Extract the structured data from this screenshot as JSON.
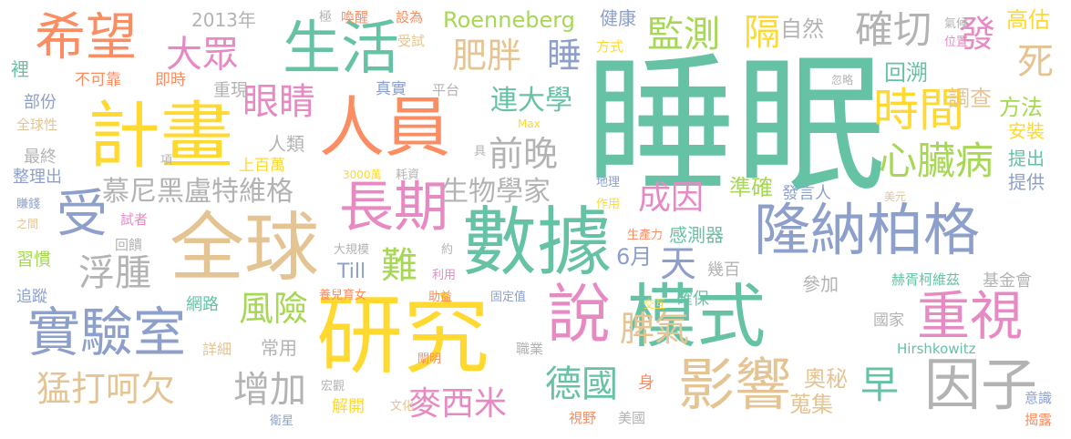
{
  "palette": {
    "green": "#66c2a5",
    "orange": "#fc8d62",
    "blue": "#8da0cb",
    "pink": "#e78ac3",
    "lime": "#a6d854",
    "yellow": "#ffd92f",
    "tan": "#e5c494",
    "gray": "#b3b3b3"
  },
  "words": [
    {
      "text": "睡眠",
      "color": "#66c2a5",
      "weight": 1.0
    },
    {
      "text": "數據",
      "color": "#66c2a5",
      "weight": 0.55
    },
    {
      "text": "研究",
      "color": "#ffd92f",
      "weight": 0.6
    },
    {
      "text": "全球",
      "color": "#e5c494",
      "weight": 0.55
    },
    {
      "text": "計畫",
      "color": "#ffd92f",
      "weight": 0.5
    },
    {
      "text": "人員",
      "color": "#fc8d62",
      "weight": 0.5
    },
    {
      "text": "模式",
      "color": "#66c2a5",
      "weight": 0.5
    },
    {
      "text": "說",
      "color": "#e78ac3",
      "weight": 0.5
    },
    {
      "text": "隆納柏格",
      "color": "#8da0cb",
      "weight": 0.45
    },
    {
      "text": "生活",
      "color": "#66c2a5",
      "weight": 0.4
    },
    {
      "text": "希望",
      "color": "#fc8d62",
      "weight": 0.4
    },
    {
      "text": "實驗室",
      "color": "#8da0cb",
      "weight": 0.38
    },
    {
      "text": "長期",
      "color": "#e78ac3",
      "weight": 0.38
    },
    {
      "text": "重視",
      "color": "#e78ac3",
      "weight": 0.38
    },
    {
      "text": "影響",
      "color": "#e5c494",
      "weight": 0.38
    },
    {
      "text": "因子",
      "color": "#b3b3b3",
      "weight": 0.38
    },
    {
      "text": "時間",
      "color": "#ffd92f",
      "weight": 0.33
    },
    {
      "text": "受",
      "color": "#8da0cb",
      "weight": 0.35
    },
    {
      "text": "大眾",
      "color": "#e78ac3",
      "weight": 0.28
    },
    {
      "text": "眼睛",
      "color": "#e78ac3",
      "weight": 0.28
    },
    {
      "text": "監測",
      "color": "#a6d854",
      "weight": 0.28
    },
    {
      "text": "隔",
      "color": "#ffd92f",
      "weight": 0.28
    },
    {
      "text": "確切",
      "color": "#b3b3b3",
      "weight": 0.28
    },
    {
      "text": "發",
      "color": "#e78ac3",
      "weight": 0.28
    },
    {
      "text": "死",
      "color": "#e5c494",
      "weight": 0.28
    },
    {
      "text": "肥胖",
      "color": "#e5c494",
      "weight": 0.25
    },
    {
      "text": "睡",
      "color": "#8da0cb",
      "weight": 0.25
    },
    {
      "text": "心臟病",
      "color": "#a6d854",
      "weight": 0.28
    },
    {
      "text": "前晚",
      "color": "#b3b3b3",
      "weight": 0.25
    },
    {
      "text": "連大學",
      "color": "#66c2a5",
      "weight": 0.22
    },
    {
      "text": "慕尼黑盧特維格",
      "color": "#b3b3b3",
      "weight": 0.22
    },
    {
      "text": "生物學家",
      "color": "#b3b3b3",
      "weight": 0.22
    },
    {
      "text": "成因",
      "color": "#e78ac3",
      "weight": 0.25
    },
    {
      "text": "浮腫",
      "color": "#b3b3b3",
      "weight": 0.28
    },
    {
      "text": "難",
      "color": "#a6d854",
      "weight": 0.28
    },
    {
      "text": "Till",
      "color": "#8da0cb",
      "weight": 0.15
    },
    {
      "text": "天",
      "color": "#8da0cb",
      "weight": 0.28
    },
    {
      "text": "6月",
      "color": "#8da0cb",
      "weight": 0.18
    },
    {
      "text": "風險",
      "color": "#a6d854",
      "weight": 0.25
    },
    {
      "text": "猛打呵欠",
      "color": "#e5c494",
      "weight": 0.25
    },
    {
      "text": "增加",
      "color": "#b3b3b3",
      "weight": 0.28
    },
    {
      "text": "德國",
      "color": "#66c2a5",
      "weight": 0.28
    },
    {
      "text": "脾氣",
      "color": "#e5c494",
      "weight": 0.25
    },
    {
      "text": "麥西米",
      "color": "#e78ac3",
      "weight": 0.25
    },
    {
      "text": "早",
      "color": "#66c2a5",
      "weight": 0.28
    },
    {
      "text": "奧秘",
      "color": "#e5c494",
      "weight": 0.18
    },
    {
      "text": "蒐集",
      "color": "#e5c494",
      "weight": 0.18
    },
    {
      "text": "Roenneberg",
      "color": "#a6d854",
      "weight": 0.16
    },
    {
      "text": "健康",
      "color": "#8da0cb",
      "weight": 0.14
    },
    {
      "text": "自然",
      "color": "#b3b3b3",
      "weight": 0.16
    },
    {
      "text": "高估",
      "color": "#ffd92f",
      "weight": 0.16
    },
    {
      "text": "回溯",
      "color": "#66c2a5",
      "weight": 0.16
    },
    {
      "text": "調查",
      "color": "#e5c494",
      "weight": 0.16
    },
    {
      "text": "方法",
      "color": "#a6d854",
      "weight": 0.16
    },
    {
      "text": "安裝",
      "color": "#ffd92f",
      "weight": 0.14
    },
    {
      "text": "提出",
      "color": "#66c2a5",
      "weight": 0.14
    },
    {
      "text": "提供",
      "color": "#8da0cb",
      "weight": 0.14
    },
    {
      "text": "準確",
      "color": "#a6d854",
      "weight": 0.16
    },
    {
      "text": "發言人",
      "color": "#8da0cb",
      "weight": 0.13
    },
    {
      "text": "感測器",
      "color": "#66c2a5",
      "weight": 0.14
    },
    {
      "text": "幾百",
      "color": "#b3b3b3",
      "weight": 0.13
    },
    {
      "text": "參加",
      "color": "#b3b3b3",
      "weight": 0.14
    },
    {
      "text": "基金會",
      "color": "#b3b3b3",
      "weight": 0.13
    },
    {
      "text": "赫胥柯維茲",
      "color": "#66c2a5",
      "weight": 0.12
    },
    {
      "text": "國家",
      "color": "#b3b3b3",
      "weight": 0.12
    },
    {
      "text": "Hirshkowitz",
      "color": "#66c2a5",
      "weight": 0.1
    },
    {
      "text": "確保",
      "color": "#66c2a5",
      "weight": 0.13
    },
    {
      "text": "職業",
      "color": "#b3b3b3",
      "weight": 0.11
    },
    {
      "text": "身",
      "color": "#fc8d62",
      "weight": 0.13
    },
    {
      "text": "視野",
      "color": "#fc8d62",
      "weight": 0.11
    },
    {
      "text": "美國",
      "color": "#b3b3b3",
      "weight": 0.11
    },
    {
      "text": "意識",
      "color": "#8da0cb",
      "weight": 0.11
    },
    {
      "text": "揭露",
      "color": "#fc8d62",
      "weight": 0.11
    },
    {
      "text": "2013年",
      "color": "#b3b3b3",
      "weight": 0.14
    },
    {
      "text": "極",
      "color": "#b3b3b3",
      "weight": 0.1
    },
    {
      "text": "喚醒",
      "color": "#fc8d62",
      "weight": 0.11
    },
    {
      "text": "設為",
      "color": "#fc8d62",
      "weight": 0.11
    },
    {
      "text": "受試",
      "color": "#e5c494",
      "weight": 0.11
    },
    {
      "text": "方式",
      "color": "#ffd92f",
      "weight": 0.11
    },
    {
      "text": "氣候",
      "color": "#b3b3b3",
      "weight": 0.1
    },
    {
      "text": "位置",
      "color": "#e78ac3",
      "weight": 0.1
    },
    {
      "text": "忽略",
      "color": "#b3b3b3",
      "weight": 0.09
    },
    {
      "text": "裡",
      "color": "#66c2a5",
      "weight": 0.13
    },
    {
      "text": "不可靠",
      "color": "#fc8d62",
      "weight": 0.12
    },
    {
      "text": "即時",
      "color": "#fc8d62",
      "weight": 0.12
    },
    {
      "text": "重現",
      "color": "#b3b3b3",
      "weight": 0.13
    },
    {
      "text": "真實",
      "color": "#8da0cb",
      "weight": 0.12
    },
    {
      "text": "平台",
      "color": "#b3b3b3",
      "weight": 0.11
    },
    {
      "text": "部份",
      "color": "#8da0cb",
      "weight": 0.12
    },
    {
      "text": "全球性",
      "color": "#e5c494",
      "weight": 0.11
    },
    {
      "text": "最終",
      "color": "#b3b3b3",
      "weight": 0.12
    },
    {
      "text": "整理出",
      "color": "#8da0cb",
      "weight": 0.12
    },
    {
      "text": "人類",
      "color": "#b3b3b3",
      "weight": 0.13
    },
    {
      "text": "具",
      "color": "#b3b3b3",
      "weight": 0.1
    },
    {
      "text": "Max",
      "color": "#ffd92f",
      "weight": 0.09
    },
    {
      "text": "項",
      "color": "#b3b3b3",
      "weight": 0.1
    },
    {
      "text": "上百萬",
      "color": "#ffd92f",
      "weight": 0.12
    },
    {
      "text": "3000萬",
      "color": "#ffd92f",
      "weight": 0.09
    },
    {
      "text": "耗資",
      "color": "#b3b3b3",
      "weight": 0.1
    },
    {
      "text": "地理",
      "color": "#8da0cb",
      "weight": 0.1
    },
    {
      "text": "作用",
      "color": "#ffd92f",
      "weight": 0.1
    },
    {
      "text": "美元",
      "color": "#e5c494",
      "weight": 0.09
    },
    {
      "text": "賺錢",
      "color": "#8da0cb",
      "weight": 0.1
    },
    {
      "text": "之間",
      "color": "#e5c494",
      "weight": 0.09
    },
    {
      "text": "試者",
      "color": "#e78ac3",
      "weight": 0.11
    },
    {
      "text": "回饋",
      "color": "#b3b3b3",
      "weight": 0.11
    },
    {
      "text": "習慣",
      "color": "#a6d854",
      "weight": 0.13
    },
    {
      "text": "追蹤",
      "color": "#8da0cb",
      "weight": 0.12
    },
    {
      "text": "大規模",
      "color": "#b3b3b3",
      "weight": 0.1
    },
    {
      "text": "約",
      "color": "#b3b3b3",
      "weight": 0.1
    },
    {
      "text": "生產力",
      "color": "#fc8d62",
      "weight": 0.1
    },
    {
      "text": "利用",
      "color": "#e78ac3",
      "weight": 0.1
    },
    {
      "text": "養兒育女",
      "color": "#fc8d62",
      "weight": 0.1
    },
    {
      "text": "助益",
      "color": "#fc8d62",
      "weight": 0.1
    },
    {
      "text": "固定值",
      "color": "#8da0cb",
      "weight": 0.1
    },
    {
      "text": "交互",
      "color": "#ffd92f",
      "weight": 0.09
    },
    {
      "text": "網路",
      "color": "#66c2a5",
      "weight": 0.13
    },
    {
      "text": "詳細",
      "color": "#e5c494",
      "weight": 0.12
    },
    {
      "text": "常用",
      "color": "#b3b3b3",
      "weight": 0.14
    },
    {
      "text": "闡明",
      "color": "#fc8d62",
      "weight": 0.1
    },
    {
      "text": "宏觀",
      "color": "#b3b3b3",
      "weight": 0.1
    },
    {
      "text": "衛星",
      "color": "#8da0cb",
      "weight": 0.1
    },
    {
      "text": "解開",
      "color": "#ffd92f",
      "weight": 0.13
    },
    {
      "text": "文化",
      "color": "#e5c494",
      "weight": 0.1
    }
  ]
}
